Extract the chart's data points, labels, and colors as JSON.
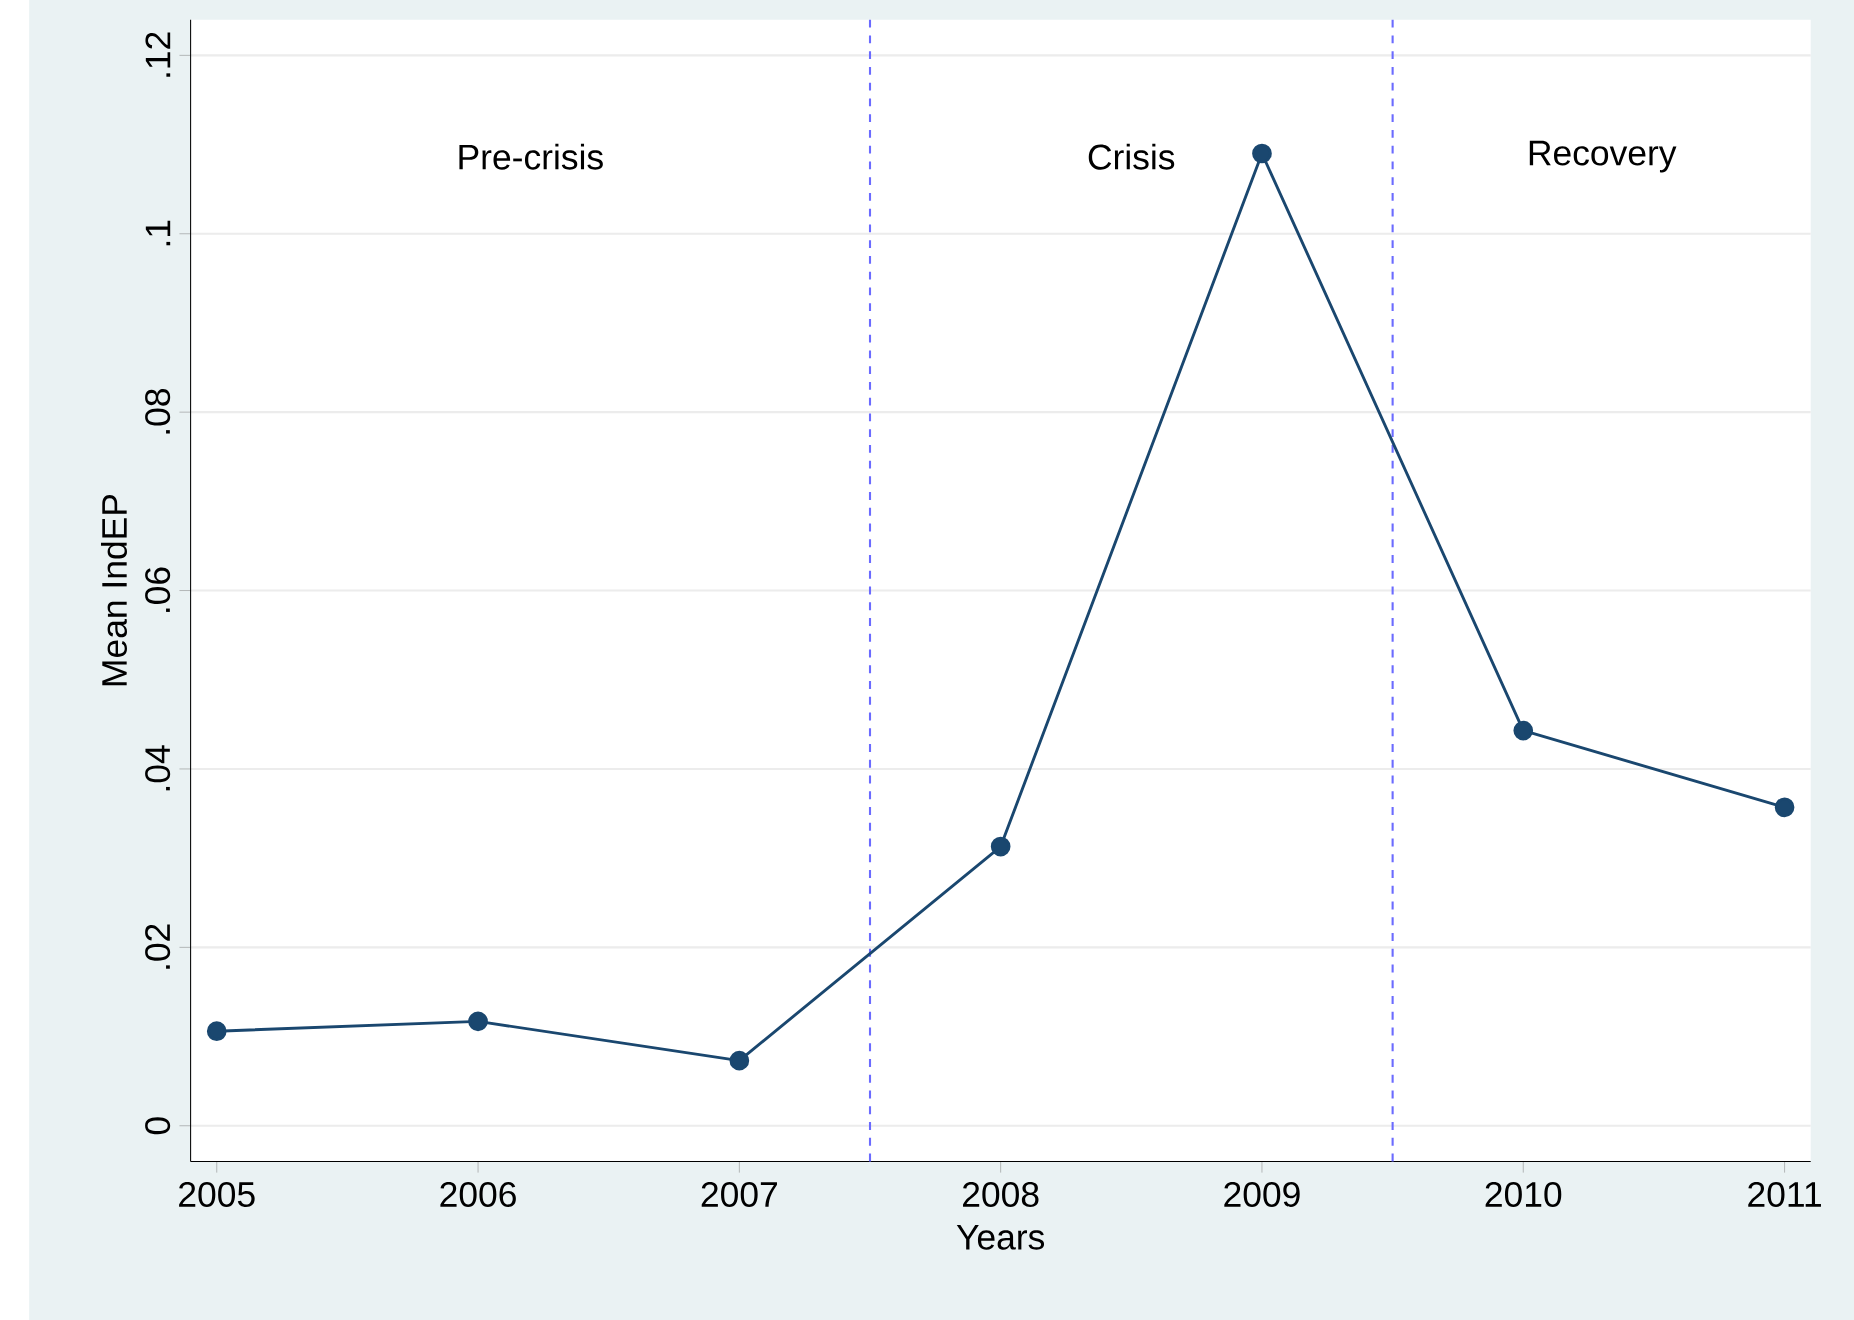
{
  "chart_data": {
    "type": "line",
    "xlabel": "Years",
    "ylabel": "Mean IndEP",
    "x": [
      2005,
      2006,
      2007,
      2008,
      2009,
      2010,
      2011
    ],
    "series": [
      {
        "color": "#1a476f",
        "values": [
          0.0106,
          0.0117,
          0.0073,
          0.0313,
          0.109,
          0.0443,
          0.0357
        ]
      }
    ],
    "xlim": [
      2004.9,
      2011.1
    ],
    "ylim": [
      -0.004,
      0.124
    ],
    "xticks": [
      2005,
      2006,
      2007,
      2008,
      2009,
      2010,
      2011
    ],
    "yticks": [
      0,
      {
        "value": 0.02,
        "label": ".02"
      },
      {
        "value": 0.04,
        "label": ".04"
      },
      {
        "value": 0.06,
        "label": ".06"
      },
      {
        "value": 0.08,
        "label": ".08"
      },
      {
        "value": 0.1,
        "label": ".1"
      },
      {
        "value": 0.12,
        "label": ".12"
      }
    ],
    "ref_lines": [
      {
        "axis": "x",
        "value": 2007.5,
        "color": "#6b6bff",
        "line_style": "dashed"
      },
      {
        "axis": "x",
        "value": 2009.5,
        "color": "#6b6bff",
        "line_style": "dashed"
      }
    ],
    "annotations": [
      "Pre-crisis",
      "Crisis",
      "Recovery"
    ],
    "grid": "y",
    "marker": "circle",
    "line_style": "solid"
  }
}
